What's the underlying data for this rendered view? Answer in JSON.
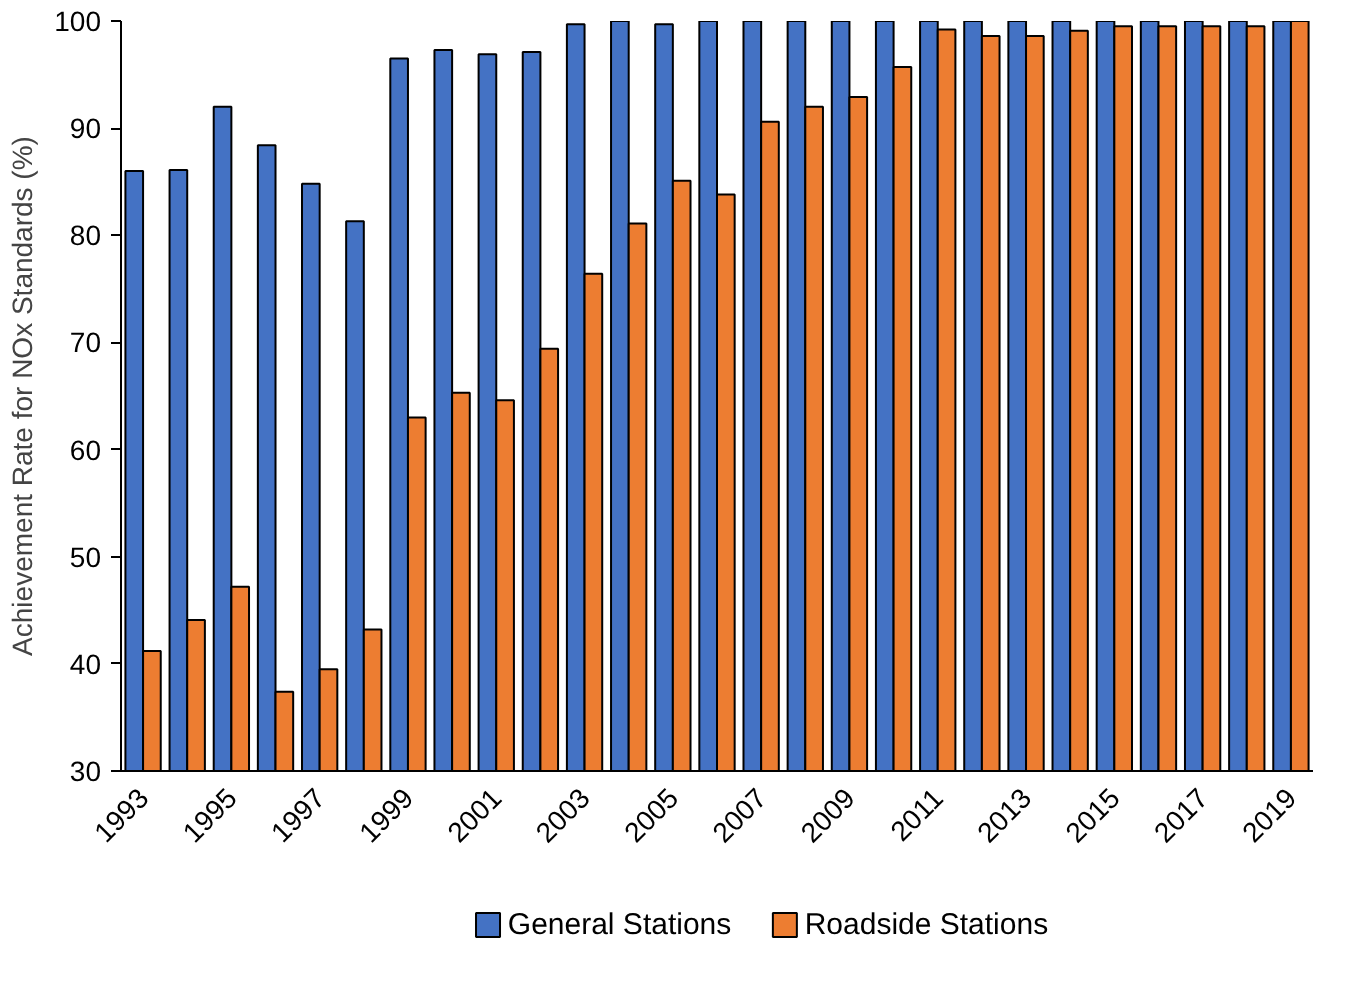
{
  "chart_data": {
    "type": "bar",
    "ylabel": "Achievement Rate for NOx Standards (%)",
    "categories": [
      "1993",
      null,
      "1995",
      null,
      "1997",
      null,
      "1999",
      null,
      "2001",
      null,
      "2003",
      null,
      "2005",
      null,
      "2007",
      null,
      "2009",
      null,
      "2011",
      null,
      "2013",
      null,
      "2015",
      null,
      "2017",
      null,
      "2019"
    ],
    "series": [
      {
        "name": "General Stations",
        "color": "#4472c4",
        "values": [
          86,
          86.1,
          92,
          88.4,
          84.8,
          81.3,
          96.5,
          97.3,
          96.9,
          97.1,
          99.7,
          100,
          99.7,
          100,
          100,
          100,
          100,
          100,
          100,
          100,
          100,
          100,
          100,
          100,
          100,
          100,
          100
        ]
      },
      {
        "name": "Roadside Stations",
        "color": "#ed7d31",
        "values": [
          41.2,
          44.1,
          47.2,
          37.4,
          39.5,
          43.2,
          63,
          65.3,
          64.6,
          69.4,
          76.4,
          81.1,
          85.1,
          83.8,
          90.6,
          92,
          92.9,
          95.7,
          99.2,
          98.6,
          98.6,
          99.1,
          99.5,
          99.5,
          99.5,
          99.5,
          100
        ]
      }
    ],
    "ylim": [
      30,
      100
    ],
    "yticks": [
      30,
      40,
      50,
      60,
      70,
      80,
      90,
      100
    ],
    "grid": false,
    "legend": "bottom"
  }
}
